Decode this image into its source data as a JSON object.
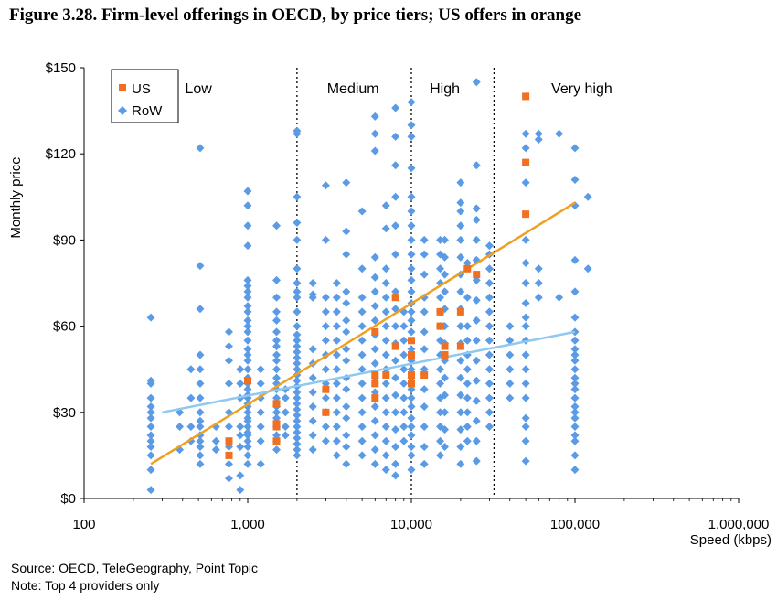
{
  "title": "Figure 3.28.  Firm-level offerings in OECD, by price tiers; US offers in orange",
  "notes": {
    "source": "Source:  OECD, TeleGeography, Point Topic",
    "note": "Note: Top 4 providers only"
  },
  "colors": {
    "us": "#F07020",
    "row": "#5B9BE6",
    "us_trend": "#F0A020",
    "row_trend": "#8FC8F0"
  },
  "chart_data": {
    "type": "scatter",
    "xscale": "log",
    "xlim": [
      100,
      1000000
    ],
    "ylim": [
      0,
      150
    ],
    "xlabel": "Speed (kbps)",
    "ylabel": "Monthly price",
    "xticks": [
      100,
      1000,
      10000,
      100000,
      1000000
    ],
    "xtick_labels": [
      "100",
      "1,000",
      "10,000",
      "100,000",
      "1,000,000"
    ],
    "yticks": [
      0,
      30,
      60,
      90,
      120,
      150
    ],
    "ytick_labels": [
      "$0",
      "$30",
      "$60",
      "$90",
      "$120",
      "$150"
    ],
    "tier_boundaries": [
      2000,
      10000,
      32000
    ],
    "tiers": [
      {
        "label": "Low",
        "x": 500
      },
      {
        "label": "Medium",
        "x": 4400
      },
      {
        "label": "High",
        "x": 16000
      },
      {
        "label": "Very high",
        "x": 110000
      }
    ],
    "legend": [
      {
        "label": "US",
        "marker": "square"
      },
      {
        "label": "RoW",
        "marker": "diamond"
      }
    ],
    "series": [
      {
        "name": "US",
        "marker": "square",
        "points": [
          [
            768,
            20
          ],
          [
            768,
            15
          ],
          [
            1000,
            41
          ],
          [
            1500,
            33
          ],
          [
            1500,
            26
          ],
          [
            1500,
            25
          ],
          [
            1500,
            20
          ],
          [
            3000,
            38
          ],
          [
            3000,
            30
          ],
          [
            6000,
            58
          ],
          [
            6000,
            43
          ],
          [
            6000,
            40
          ],
          [
            6000,
            35
          ],
          [
            7000,
            43
          ],
          [
            8000,
            70
          ],
          [
            8000,
            53
          ],
          [
            10000,
            55
          ],
          [
            10000,
            50
          ],
          [
            10000,
            43
          ],
          [
            10000,
            40
          ],
          [
            12000,
            43
          ],
          [
            15000,
            65
          ],
          [
            15000,
            60
          ],
          [
            16000,
            53
          ],
          [
            16000,
            50
          ],
          [
            20000,
            65
          ],
          [
            20000,
            53
          ],
          [
            22000,
            80
          ],
          [
            25000,
            78
          ],
          [
            50000,
            140
          ],
          [
            50000,
            117
          ],
          [
            50000,
            99
          ]
        ]
      },
      {
        "name": "RoW",
        "marker": "diamond",
        "columns": [
          {
            "x": 256,
            "values": [
              3,
              10,
              15,
              18,
              20,
              22,
              25,
              28,
              30,
              32,
              35,
              40,
              41,
              63
            ]
          },
          {
            "x": 384,
            "values": [
              17,
              25,
              30
            ]
          },
          {
            "x": 450,
            "values": [
              20,
              25,
              35,
              45
            ]
          },
          {
            "x": 512,
            "values": [
              12,
              15,
              18,
              20,
              22,
              25,
              27,
              30,
              35,
              40,
              45,
              50,
              66,
              81,
              122
            ]
          },
          {
            "x": 640,
            "values": [
              17,
              20,
              25
            ]
          },
          {
            "x": 768,
            "values": [
              7,
              12,
              18,
              25,
              30,
              40,
              48,
              53,
              58
            ]
          },
          {
            "x": 900,
            "values": [
              3,
              8,
              18,
              22,
              25,
              35,
              40,
              45
            ]
          },
          {
            "x": 1000,
            "values": [
              12,
              15,
              18,
              20,
              22,
              23,
              25,
              27,
              28,
              30,
              32,
              33,
              35,
              36,
              38,
              40,
              42,
              45,
              48,
              50,
              52,
              55,
              58,
              60,
              62,
              65,
              67,
              70,
              72,
              74,
              76,
              88,
              95,
              102,
              107
            ]
          },
          {
            "x": 1200,
            "values": [
              12,
              20,
              25,
              30,
              35,
              40,
              45
            ]
          },
          {
            "x": 1500,
            "values": [
              17,
              20,
              22,
              25,
              28,
              30,
              32,
              35,
              38,
              40,
              42,
              45,
              48,
              50,
              53,
              55,
              58,
              62,
              65,
              70,
              76,
              95
            ]
          },
          {
            "x": 1700,
            "values": [
              22,
              25,
              30,
              35,
              38
            ]
          },
          {
            "x": 2000,
            "values": [
              15,
              17,
              19,
              21,
              23,
              25,
              27,
              29,
              31,
              33,
              35,
              37,
              39,
              41,
              43,
              45,
              47,
              49,
              51,
              53,
              55,
              57,
              60,
              65,
              70,
              72,
              75,
              80,
              90,
              96,
              105,
              127,
              128
            ]
          },
          {
            "x": 2500,
            "values": [
              17,
              22,
              27,
              32,
              37,
              42,
              47,
              52,
              70,
              71,
              75
            ]
          },
          {
            "x": 3000,
            "values": [
              20,
              25,
              30,
              35,
              40,
              45,
              50,
              55,
              60,
              65,
              70,
              90,
              109
            ]
          },
          {
            "x": 3500,
            "values": [
              15,
              20,
              25,
              30,
              35,
              40,
              45,
              50,
              55,
              60,
              65,
              70,
              75
            ]
          },
          {
            "x": 4000,
            "values": [
              12,
              18,
              22,
              28,
              32,
              38,
              42,
              48,
              52,
              58,
              62,
              68,
              72,
              85,
              93,
              110
            ]
          },
          {
            "x": 5000,
            "values": [
              15,
              20,
              25,
              30,
              35,
              40,
              45,
              50,
              55,
              60,
              65,
              70,
              80,
              100
            ]
          },
          {
            "x": 6000,
            "values": [
              12,
              17,
              22,
              27,
              32,
              37,
              42,
              47,
              52,
              57,
              62,
              67,
              72,
              77,
              84,
              121,
              127,
              133
            ]
          },
          {
            "x": 7000,
            "values": [
              10,
              15,
              20,
              25,
              30,
              35,
              40,
              45,
              50,
              55,
              60,
              65,
              70,
              75,
              80,
              94,
              102
            ]
          },
          {
            "x": 8000,
            "values": [
              8,
              12,
              18,
              24,
              30,
              36,
              42,
              48,
              54,
              60,
              66,
              72,
              85,
              95,
              105,
              116,
              126,
              136
            ]
          },
          {
            "x": 9000,
            "values": [
              20,
              25,
              30,
              35,
              40,
              45,
              50,
              55,
              60,
              65
            ]
          },
          {
            "x": 10000,
            "values": [
              10,
              15,
              18,
              22,
              25,
              28,
              32,
              35,
              38,
              42,
              45,
              48,
              52,
              58,
              62,
              65,
              68,
              72,
              76,
              80,
              85,
              90,
              95,
              100,
              105,
              115,
              126,
              130,
              138
            ]
          },
          {
            "x": 12000,
            "values": [
              12,
              18,
              25,
              32,
              38,
              45,
              52,
              58,
              65,
              70,
              78,
              85,
              90
            ]
          },
          {
            "x": 15000,
            "values": [
              15,
              20,
              25,
              30,
              35,
              40,
              45,
              50,
              55,
              60,
              65,
              70,
              75,
              80,
              85,
              90
            ]
          },
          {
            "x": 16000,
            "values": [
              18,
              24,
              30,
              36,
              42,
              48,
              54,
              60,
              66,
              72,
              78,
              84,
              90
            ]
          },
          {
            "x": 20000,
            "values": [
              12,
              18,
              24,
              30,
              36,
              42,
              48,
              54,
              60,
              66,
              72,
              78,
              84,
              90,
              95,
              100,
              103,
              110
            ]
          },
          {
            "x": 22000,
            "values": [
              20,
              25,
              30,
              35,
              40,
              45,
              50,
              55,
              60,
              70,
              82
            ]
          },
          {
            "x": 25000,
            "values": [
              13,
              20,
              27,
              34,
              41,
              48,
              55,
              62,
              69,
              76,
              83,
              90,
              97,
              101,
              116,
              145
            ]
          },
          {
            "x": 30000,
            "values": [
              25,
              30,
              35,
              40,
              45,
              50,
              55,
              60,
              65,
              70,
              75,
              80,
              85,
              88
            ]
          },
          {
            "x": 40000,
            "values": [
              35,
              40,
              45,
              50,
              55,
              60
            ]
          },
          {
            "x": 50000,
            "values": [
              13,
              20,
              25,
              28,
              35,
              40,
              45,
              50,
              55,
              60,
              63,
              68,
              75,
              82,
              90,
              110,
              122,
              127
            ]
          },
          {
            "x": 60000,
            "values": [
              70,
              75,
              80,
              125,
              127
            ]
          },
          {
            "x": 80000,
            "values": [
              70,
              127
            ]
          },
          {
            "x": 100000,
            "values": [
              10,
              15,
              20,
              22,
              25,
              28,
              30,
              32,
              35,
              38,
              40,
              42,
              45,
              48,
              50,
              52,
              55,
              58,
              63,
              72,
              83,
              102,
              111,
              122
            ]
          },
          {
            "x": 120000,
            "values": [
              80,
              105
            ]
          }
        ]
      }
    ],
    "trendlines": [
      {
        "series": "US",
        "from": [
          256,
          12
        ],
        "to": [
          100000,
          103
        ]
      },
      {
        "series": "RoW",
        "from": [
          300,
          30
        ],
        "to": [
          100000,
          58
        ]
      }
    ]
  }
}
